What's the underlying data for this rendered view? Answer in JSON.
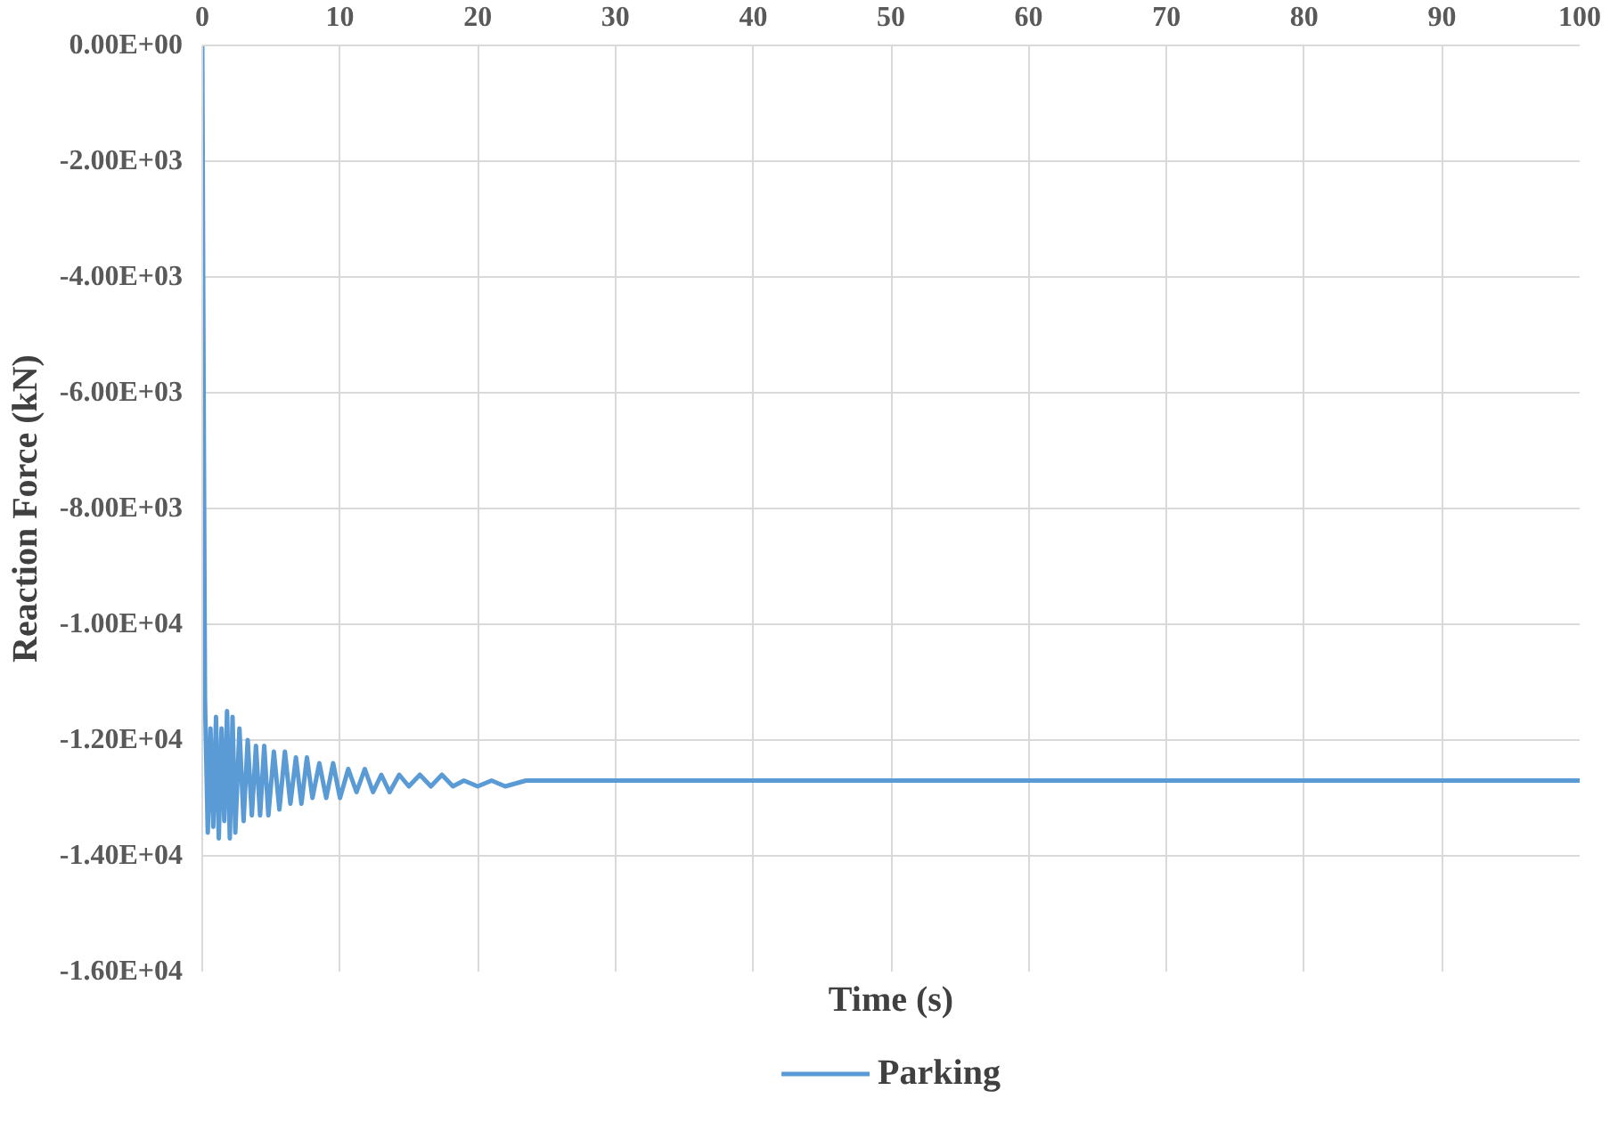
{
  "chart_data": {
    "type": "line",
    "xlabel": "Time (s)",
    "ylabel": "Reaction Force (kN)",
    "x": [
      0,
      0.1,
      0.2,
      0.4,
      0.6,
      0.8,
      1.0,
      1.2,
      1.4,
      1.6,
      1.8,
      2.0,
      2.2,
      2.4,
      2.7,
      3.0,
      3.3,
      3.6,
      3.9,
      4.2,
      4.5,
      4.8,
      5.2,
      5.6,
      6.0,
      6.4,
      6.8,
      7.2,
      7.6,
      8.0,
      8.5,
      9.0,
      9.5,
      10,
      10.6,
      11.2,
      11.8,
      12.4,
      13.0,
      13.6,
      14.3,
      15,
      15.8,
      16.6,
      17.4,
      18.2,
      19,
      20,
      21,
      22,
      23.5,
      25,
      27,
      100
    ],
    "series": [
      {
        "name": "Parking",
        "color": "#5b9bd5",
        "values": [
          0,
          -6000,
          -11300,
          -13600,
          -11800,
          -13500,
          -11600,
          -13700,
          -11800,
          -13400,
          -11500,
          -13700,
          -11600,
          -13600,
          -11800,
          -13400,
          -12000,
          -13300,
          -12100,
          -13300,
          -12100,
          -13300,
          -12200,
          -13200,
          -12200,
          -13100,
          -12300,
          -13100,
          -12300,
          -13000,
          -12400,
          -13000,
          -12400,
          -13000,
          -12500,
          -12900,
          -12500,
          -12900,
          -12600,
          -12900,
          -12600,
          -12800,
          -12600,
          -12800,
          -12600,
          -12800,
          -12700,
          -12800,
          -12700,
          -12800,
          -12700,
          -12700,
          -12700,
          -12700
        ]
      }
    ],
    "xlim": [
      0,
      100
    ],
    "xticks": [
      0,
      10,
      20,
      30,
      40,
      50,
      60,
      70,
      80,
      90,
      100
    ],
    "ylim": [
      -16000,
      0
    ],
    "yticks": [
      {
        "value": 0,
        "label": "0.00E+00"
      },
      {
        "value": -2000,
        "label": "-2.00E+03"
      },
      {
        "value": -4000,
        "label": "-4.00E+03"
      },
      {
        "value": -6000,
        "label": "-6.00E+03"
      },
      {
        "value": -8000,
        "label": "-8.00E+03"
      },
      {
        "value": -10000,
        "label": "-1.00E+04"
      },
      {
        "value": -12000,
        "label": "-1.20E+04"
      },
      {
        "value": -14000,
        "label": "-1.40E+04"
      },
      {
        "value": -16000,
        "label": "-1.60E+04"
      }
    ],
    "grid": true,
    "legend": "bottom",
    "line_style": "solid"
  }
}
